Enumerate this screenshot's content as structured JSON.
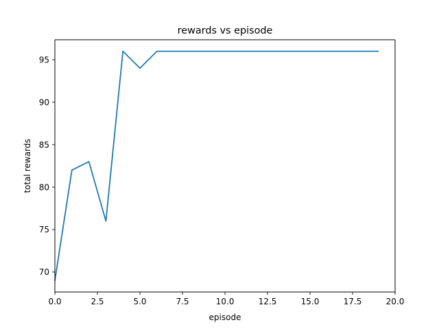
{
  "chart_data": {
    "type": "line",
    "title": "rewards vs episode",
    "xlabel": "episode",
    "ylabel": "total rewards",
    "xlim": [
      0,
      20
    ],
    "ylim": [
      67.65,
      97.35
    ],
    "xticks": [
      0,
      2.5,
      5,
      7.5,
      10,
      12.5,
      15,
      17.5,
      20
    ],
    "xtick_labels": [
      "0.0",
      "2.5",
      "5.0",
      "7.5",
      "10.0",
      "12.5",
      "15.0",
      "17.5",
      "20.0"
    ],
    "yticks": [
      70,
      75,
      80,
      85,
      90,
      95
    ],
    "ytick_labels": [
      "70",
      "75",
      "80",
      "85",
      "90",
      "95"
    ],
    "grid": false,
    "series": [
      {
        "color": "#1f77b4",
        "x": [
          0,
          1,
          2,
          3,
          4,
          5,
          6,
          7,
          8,
          9,
          10,
          11,
          12,
          13,
          14,
          15,
          16,
          17,
          18,
          19
        ],
        "y": [
          69,
          82,
          83,
          76,
          96,
          94,
          96,
          96,
          96,
          96,
          96,
          96,
          96,
          96,
          96,
          96,
          96,
          96,
          96,
          96
        ]
      }
    ]
  }
}
